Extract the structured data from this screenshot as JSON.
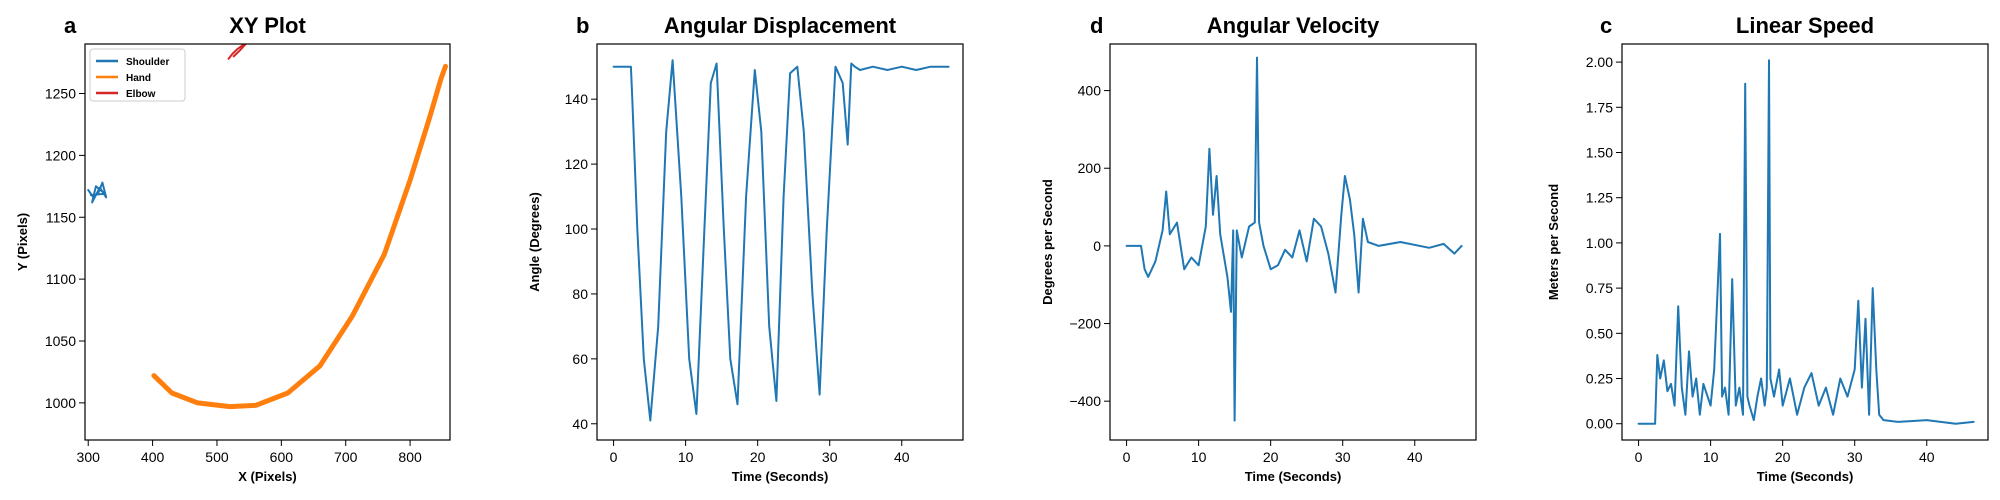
{
  "colors": {
    "blue": "#1f77b4",
    "orange": "#ff7f0e",
    "red": "#d62728"
  },
  "chart_data": [
    {
      "type": "line",
      "panel_label": "a",
      "title": "XY Plot",
      "xlabel": "X (Pixels)",
      "ylabel": "Y (Pixels)",
      "xlim": [
        295,
        862
      ],
      "ylim": [
        970,
        1290
      ],
      "xticks": [
        300,
        400,
        500,
        600,
        700,
        800
      ],
      "yticks": [
        1000,
        1050,
        1100,
        1150,
        1200,
        1250
      ],
      "legend_position": "top-left",
      "series": [
        {
          "name": "Shoulder",
          "color": "#1f77b4",
          "x": [
            300,
            308,
            316,
            322,
            328,
            318,
            306,
            312,
            326,
            304
          ],
          "y": [
            1172,
            1166,
            1170,
            1178,
            1166,
            1174,
            1162,
            1175,
            1169,
            1168
          ]
        },
        {
          "name": "Hand",
          "color": "#ff7f0e",
          "x": [
            402,
            430,
            470,
            520,
            560,
            610,
            660,
            710,
            760,
            800,
            830,
            848,
            855
          ],
          "y": [
            1022,
            1008,
            1000,
            997,
            998,
            1008,
            1030,
            1070,
            1120,
            1180,
            1230,
            1262,
            1272
          ]
        },
        {
          "name": "Elbow",
          "color": "#d62728",
          "x": [
            518,
            524,
            532,
            540,
            548,
            536,
            526
          ],
          "y": [
            1278,
            1282,
            1286,
            1289,
            1292,
            1285,
            1280
          ]
        }
      ]
    },
    {
      "type": "line",
      "panel_label": "b",
      "title": "Angular Displacement",
      "xlabel": "Time (Seconds)",
      "ylabel": "Angle (Degrees)",
      "xlim": [
        -2.3,
        48.5
      ],
      "ylim": [
        35,
        157
      ],
      "xticks": [
        0,
        10,
        20,
        30,
        40
      ],
      "yticks": [
        40,
        60,
        80,
        100,
        120,
        140
      ],
      "series": [
        {
          "name": "",
          "color": "#1f77b4",
          "x": [
            0,
            2.4,
            2.6,
            3.3,
            4.2,
            5.1,
            6.2,
            7.3,
            8.2,
            9.4,
            10.5,
            11.5,
            12.6,
            13.5,
            14.3,
            15.3,
            16.2,
            17.2,
            18.4,
            19.6,
            20.5,
            21.6,
            22.6,
            23.6,
            24.5,
            25.5,
            26.4,
            27.6,
            28.6,
            29.6,
            30.8,
            31.8,
            32.5,
            33.0,
            33.5,
            34.2,
            36,
            38,
            40,
            42,
            44,
            46.5
          ],
          "y": [
            150,
            150,
            140,
            100,
            60,
            41,
            70,
            130,
            152,
            110,
            60,
            43,
            100,
            145,
            151,
            100,
            60,
            46,
            110,
            149,
            130,
            70,
            47,
            110,
            148,
            150,
            130,
            80,
            49,
            100,
            150,
            145,
            126,
            151,
            150,
            149,
            150,
            149,
            150,
            149,
            150,
            150
          ]
        }
      ]
    },
    {
      "type": "line",
      "panel_label": "d",
      "title": "Angular Velocity",
      "xlabel": "Time (Seconds)",
      "ylabel": "Degrees per Second",
      "xlim": [
        -2.3,
        48.5
      ],
      "ylim": [
        -500,
        520
      ],
      "xticks": [
        0,
        10,
        20,
        30,
        40
      ],
      "yticks": [
        -400,
        -200,
        0,
        200,
        400
      ],
      "series": [
        {
          "name": "",
          "color": "#1f77b4",
          "x": [
            0,
            2,
            2.5,
            3,
            4,
            5,
            5.5,
            6,
            7,
            8,
            9,
            10,
            11,
            11.5,
            12,
            12.5,
            13,
            14,
            14.5,
            14.8,
            15,
            15.3,
            16,
            17,
            17.8,
            18.1,
            18.4,
            19,
            20,
            21,
            22,
            23,
            24,
            25,
            26,
            27,
            28,
            29,
            29.8,
            30.3,
            31,
            31.6,
            32.2,
            32.8,
            33.5,
            35,
            38,
            42,
            44,
            45.5,
            46.5
          ],
          "y": [
            0,
            0,
            -60,
            -80,
            -40,
            40,
            140,
            30,
            60,
            -60,
            -30,
            -50,
            50,
            250,
            80,
            180,
            30,
            -80,
            -170,
            40,
            -450,
            40,
            -30,
            50,
            60,
            485,
            60,
            0,
            -60,
            -50,
            -10,
            -30,
            40,
            -40,
            70,
            50,
            -20,
            -120,
            80,
            180,
            120,
            30,
            -120,
            70,
            10,
            0,
            10,
            -5,
            5,
            -20,
            0
          ]
        }
      ]
    },
    {
      "type": "line",
      "panel_label": "c",
      "title": "Linear Speed",
      "xlabel": "Time (Seconds)",
      "ylabel": "Meters per Second",
      "xlim": [
        -2.3,
        48.5
      ],
      "ylim": [
        -0.09,
        2.1
      ],
      "xticks": [
        0,
        10,
        20,
        30,
        40
      ],
      "yticks": [
        0.0,
        0.25,
        0.5,
        0.75,
        1.0,
        1.25,
        1.5,
        1.75,
        2.0
      ],
      "series": [
        {
          "name": "",
          "color": "#1f77b4",
          "x": [
            0,
            2.3,
            2.6,
            3,
            3.5,
            4,
            4.5,
            5,
            5.5,
            6,
            6.5,
            7,
            7.5,
            8,
            8.5,
            9,
            10,
            10.5,
            11.3,
            11.6,
            12,
            12.5,
            13,
            13.5,
            14,
            14.5,
            14.8,
            15.1,
            15.4,
            16,
            16.5,
            17,
            17.5,
            17.8,
            18.1,
            18.3,
            18.8,
            19.5,
            20,
            21,
            22,
            23,
            24,
            25,
            26,
            27,
            28,
            29,
            30,
            30.5,
            31,
            31.5,
            32,
            32.5,
            33,
            33.4,
            34,
            36,
            40,
            44,
            46.5
          ],
          "y": [
            0,
            0,
            0.38,
            0.25,
            0.35,
            0.18,
            0.22,
            0.1,
            0.65,
            0.2,
            0.05,
            0.4,
            0.15,
            0.25,
            0.05,
            0.22,
            0.1,
            0.3,
            1.05,
            0.15,
            0.2,
            0.05,
            0.8,
            0.1,
            0.2,
            0.05,
            1.88,
            0.15,
            0.1,
            0.02,
            0.15,
            0.25,
            0.1,
            0.2,
            2.01,
            0.25,
            0.15,
            0.3,
            0.1,
            0.25,
            0.05,
            0.2,
            0.28,
            0.1,
            0.2,
            0.05,
            0.25,
            0.15,
            0.3,
            0.68,
            0.2,
            0.58,
            0.05,
            0.75,
            0.3,
            0.05,
            0.02,
            0.01,
            0.02,
            0.0,
            0.01
          ]
        }
      ]
    }
  ]
}
